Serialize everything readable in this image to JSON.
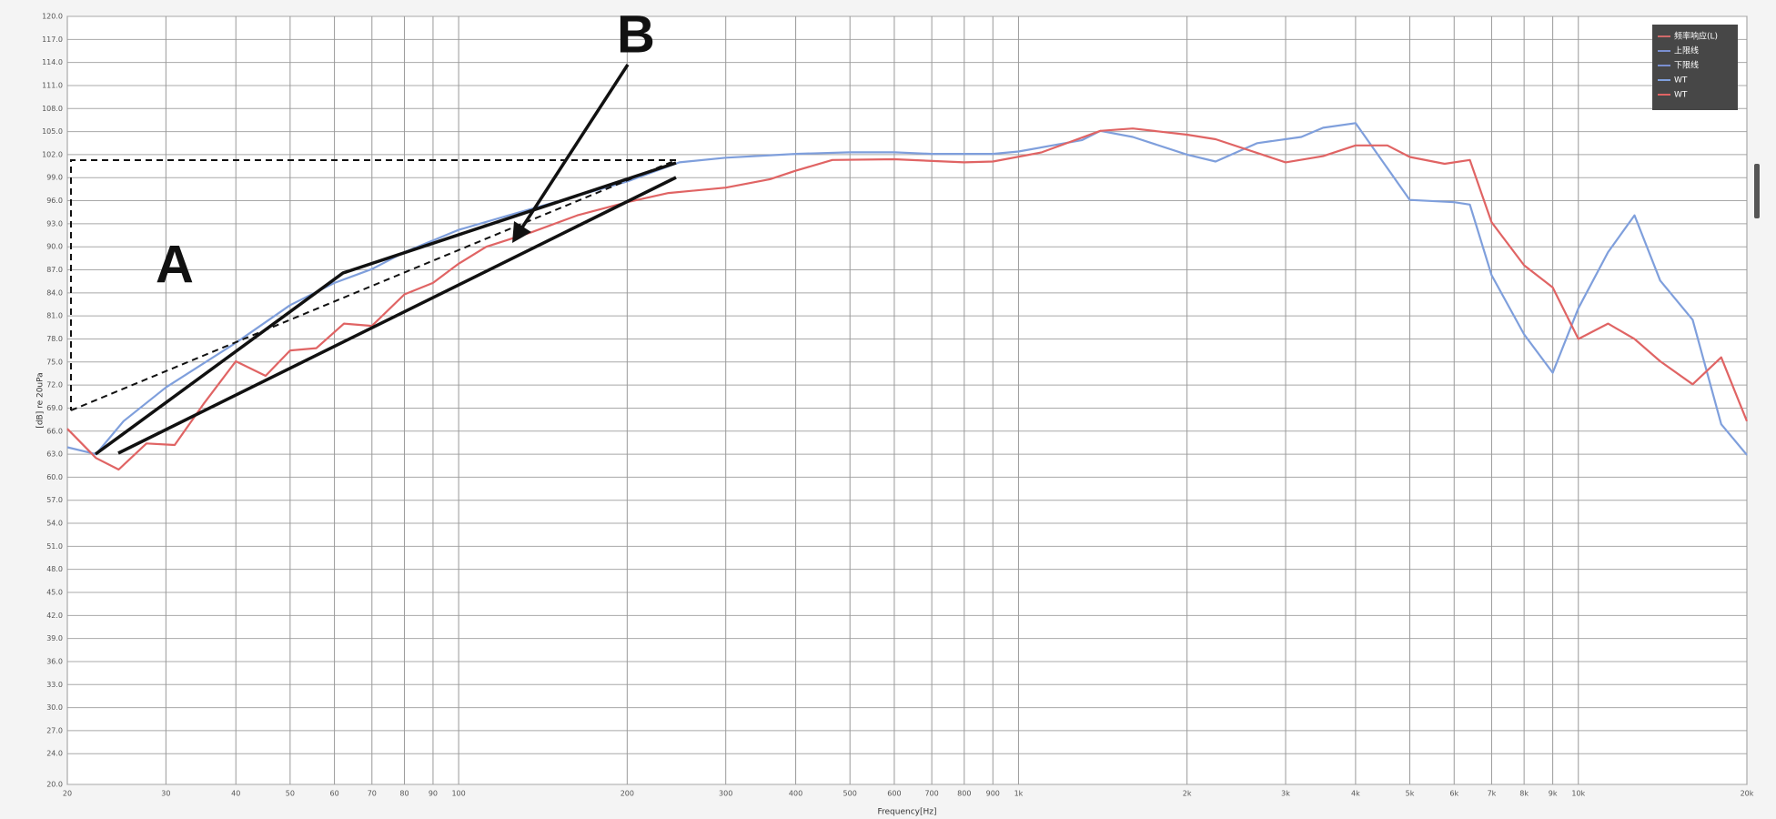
{
  "chart_data": {
    "type": "line",
    "xlabel": "Frequency[Hz]",
    "ylabel": "[dB] re 20uPa",
    "xscale": "log",
    "xlim": [
      20,
      20000
    ],
    "ylim": [
      20,
      120
    ],
    "grid": true,
    "xticks": [
      20,
      30,
      40,
      50,
      60,
      70,
      80,
      90,
      100,
      200,
      300,
      400,
      500,
      600,
      700,
      800,
      900,
      {
        "value": 1000,
        "label": "1k"
      },
      {
        "value": 2000,
        "label": "2k"
      },
      {
        "value": 3000,
        "label": "3k"
      },
      {
        "value": 4000,
        "label": "4k"
      },
      {
        "value": 5000,
        "label": "5k"
      },
      {
        "value": 6000,
        "label": "6k"
      },
      {
        "value": 7000,
        "label": "7k"
      },
      {
        "value": 8000,
        "label": "8k"
      },
      {
        "value": 9000,
        "label": "9k"
      },
      {
        "value": 10000,
        "label": "10k"
      },
      {
        "value": 20000,
        "label": "20k"
      }
    ],
    "yticks": [
      {
        "value": 20,
        "label": "20.0"
      },
      {
        "value": 24,
        "label": "24.0"
      },
      {
        "value": 27,
        "label": "27.0"
      },
      {
        "value": 30,
        "label": "30.0"
      },
      {
        "value": 33,
        "label": "33.0"
      },
      {
        "value": 36,
        "label": "36.0"
      },
      {
        "value": 39,
        "label": "39.0"
      },
      {
        "value": 42,
        "label": "42.0"
      },
      {
        "value": 45,
        "label": "45.0"
      },
      {
        "value": 48,
        "label": "48.0"
      },
      {
        "value": 51,
        "label": "51.0"
      },
      {
        "value": 54,
        "label": "54.0"
      },
      {
        "value": 57,
        "label": "57.0"
      },
      {
        "value": 60,
        "label": "60.0"
      },
      {
        "value": 63,
        "label": "63.0"
      },
      {
        "value": 66,
        "label": "66.0"
      },
      {
        "value": 69,
        "label": "69.0"
      },
      {
        "value": 72,
        "label": "72.0"
      },
      {
        "value": 75,
        "label": "75.0"
      },
      {
        "value": 78,
        "label": "78.0"
      },
      {
        "value": 81,
        "label": "81.0"
      },
      {
        "value": 84,
        "label": "84.0"
      },
      {
        "value": 87,
        "label": "87.0"
      },
      {
        "value": 90,
        "label": "90.0"
      },
      {
        "value": 93,
        "label": "93.0"
      },
      {
        "value": 96,
        "label": "96.0"
      },
      {
        "value": 99,
        "label": "99.0"
      },
      {
        "value": 102,
        "label": "102.0"
      },
      {
        "value": 105,
        "label": "105.0"
      },
      {
        "value": 108,
        "label": "108.0"
      },
      {
        "value": 111,
        "label": "111.0"
      },
      {
        "value": 114,
        "label": "114.0"
      },
      {
        "value": 117,
        "label": "117.0"
      },
      {
        "value": 120,
        "label": "120.0"
      }
    ],
    "legend_items": [
      {
        "name": "频率响应(L)",
        "color": "#d06a6a"
      },
      {
        "name": "上限线",
        "color": "#7a8fd0"
      },
      {
        "name": "下限线",
        "color": "#7a8fd0"
      }
    ],
    "series": [
      {
        "name": "WT",
        "color": "#7f9fdc",
        "x": [
          20,
          22.5,
          25.2,
          30,
          40,
          50,
          60,
          70,
          80,
          100,
          123,
          200,
          248,
          300,
          400,
          500,
          600,
          700,
          900,
          1000,
          1300,
          1400,
          1600,
          2000,
          2250,
          2670,
          3200,
          3500,
          4000,
          5000,
          6000,
          6400,
          7000,
          8000,
          9000,
          10000,
          11300,
          12600,
          14000,
          16000,
          18000,
          20000
        ],
        "values": [
          63.9,
          63.0,
          67.3,
          71.7,
          77.5,
          82.4,
          85.3,
          87.1,
          89.3,
          92.2,
          94.1,
          98.5,
          101.0,
          101.6,
          102.1,
          102.3,
          102.3,
          102.1,
          102.1,
          102.4,
          103.9,
          105.1,
          104.3,
          102.0,
          101.1,
          103.5,
          104.3,
          105.5,
          106.1,
          96.1,
          95.8,
          95.5,
          86.3,
          78.6,
          73.6,
          82.0,
          89.3,
          94.1,
          85.6,
          80.5,
          66.9,
          62.9
        ]
      },
      {
        "name": "WT",
        "color": "#e06464",
        "x": [
          20,
          22.5,
          24.7,
          27.7,
          31.1,
          35,
          40,
          45.2,
          50,
          55.7,
          62.4,
          70,
          80,
          90,
          100,
          112,
          135,
          163,
          200,
          237,
          300,
          360,
          400,
          465,
          600,
          800,
          900,
          1100,
          1400,
          1600,
          2000,
          2250,
          3000,
          3500,
          4000,
          4560,
          5000,
          5770,
          6400,
          7000,
          8000,
          9000,
          10000,
          11300,
          12600,
          14000,
          16000,
          18000,
          20000
        ],
        "values": [
          66.3,
          62.5,
          61.0,
          64.4,
          64.2,
          69.5,
          75.1,
          73.2,
          76.5,
          76.8,
          80.0,
          79.7,
          83.8,
          85.3,
          87.8,
          90.0,
          91.9,
          94.1,
          95.8,
          97.0,
          97.7,
          98.8,
          99.9,
          101.3,
          101.4,
          101.0,
          101.1,
          102.3,
          105.1,
          105.4,
          104.6,
          104.0,
          101.0,
          101.8,
          103.2,
          103.2,
          101.7,
          100.8,
          101.3,
          93.2,
          87.6,
          84.7,
          78.0,
          80.0,
          78.0,
          75.1,
          72.1,
          75.6,
          67.3
        ]
      }
    ],
    "annotations": [
      "A",
      "B"
    ]
  }
}
